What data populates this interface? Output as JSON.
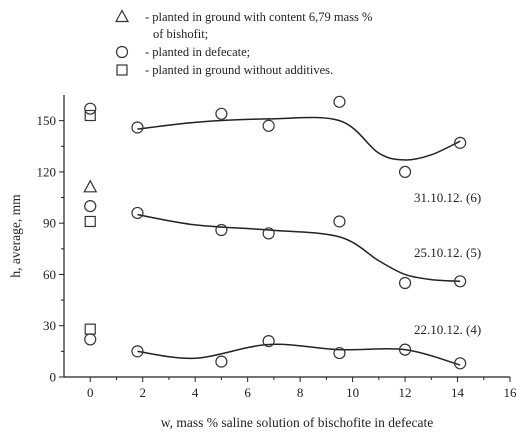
{
  "chart_data": {
    "type": "scatter",
    "title": "",
    "xlabel": "w, mass % saline solution of bischofite in defecate",
    "ylabel": "h, average, mm",
    "xlim": [
      -1,
      16
    ],
    "ylim": [
      0,
      165
    ],
    "xticks": [
      0,
      2,
      4,
      6,
      8,
      10,
      12,
      14,
      16
    ],
    "yticks": [
      0,
      30,
      60,
      90,
      120,
      150
    ],
    "legend": {
      "placement": "top",
      "items": [
        {
          "marker": "triangle",
          "lines": [
            "- planted in ground with content 6,79 mass %",
            "of bishofit;"
          ]
        },
        {
          "marker": "circle",
          "lines": [
            "- planted in defecate;"
          ]
        },
        {
          "marker": "square",
          "lines": [
            "- planted in ground without additives."
          ]
        }
      ]
    },
    "series": [
      {
        "label": "31.10.12. (6)",
        "circles": [
          [
            0,
            157
          ],
          [
            1.8,
            146
          ],
          [
            5,
            154
          ],
          [
            6.8,
            147
          ],
          [
            9.5,
            161
          ],
          [
            12,
            120
          ],
          [
            14.1,
            137
          ]
        ],
        "triangle": [
          [
            0,
            111
          ]
        ],
        "squares": [
          [
            0,
            153
          ]
        ]
      },
      {
        "label": "25.10.12. (5)",
        "circles": [
          [
            0,
            100
          ],
          [
            1.8,
            96
          ],
          [
            5,
            86
          ],
          [
            6.8,
            84
          ],
          [
            9.5,
            91
          ],
          [
            12,
            55
          ],
          [
            14.1,
            56
          ]
        ],
        "triangle": [],
        "squares": [
          [
            0,
            91
          ]
        ]
      },
      {
        "label": "22.10.12. (4)",
        "circles": [
          [
            0,
            22
          ],
          [
            1.8,
            15
          ],
          [
            5,
            9
          ],
          [
            6.8,
            21
          ],
          [
            9.5,
            14
          ],
          [
            12,
            16
          ],
          [
            14.1,
            8
          ]
        ],
        "triangle": [],
        "squares": [
          [
            0,
            28
          ]
        ]
      }
    ],
    "curves": [
      [
        [
          1.8,
          145
        ],
        [
          4,
          149
        ],
        [
          6.8,
          151
        ],
        [
          9.5,
          150
        ],
        [
          11,
          131
        ],
        [
          12,
          127
        ],
        [
          13,
          130
        ],
        [
          14.1,
          138
        ]
      ],
      [
        [
          1.8,
          95
        ],
        [
          4,
          89
        ],
        [
          6.8,
          86
        ],
        [
          9.5,
          82
        ],
        [
          11,
          68
        ],
        [
          12,
          60
        ],
        [
          13,
          57
        ],
        [
          14.1,
          56
        ]
      ],
      [
        [
          1.8,
          15
        ],
        [
          4,
          11
        ],
        [
          6.8,
          19
        ],
        [
          9.5,
          16
        ],
        [
          12,
          16
        ],
        [
          14.1,
          7
        ]
      ]
    ],
    "grid": false
  }
}
